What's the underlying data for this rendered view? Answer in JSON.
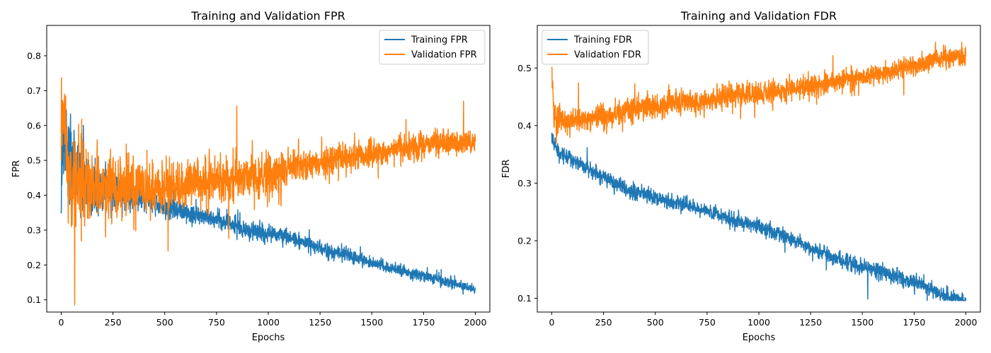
{
  "colors": {
    "training": "#1f77b4",
    "validation": "#ff7f0e"
  },
  "chart_data": [
    {
      "type": "line",
      "title": "Training and Validation FPR",
      "xlabel": "Epochs",
      "ylabel": "FPR",
      "xlim": [
        -70,
        2070
      ],
      "ylim": [
        0.065,
        0.887
      ],
      "xticks": [
        0,
        250,
        500,
        750,
        1000,
        1250,
        1500,
        1750,
        2000
      ],
      "yticks": [
        0.1,
        0.2,
        0.3,
        0.4,
        0.5,
        0.6,
        0.7,
        0.8
      ],
      "legend_position": "top-right",
      "grid": false,
      "series": [
        {
          "name": "Training FPR",
          "color": "#1f77b4",
          "x": [
            0,
            10,
            25,
            50,
            100,
            150,
            200,
            250,
            300,
            400,
            500,
            600,
            700,
            800,
            900,
            1000,
            1100,
            1200,
            1300,
            1400,
            1500,
            1600,
            1700,
            1800,
            1900,
            2000
          ],
          "values": [
            0.38,
            0.6,
            0.5,
            0.52,
            0.45,
            0.42,
            0.41,
            0.41,
            0.4,
            0.39,
            0.37,
            0.35,
            0.34,
            0.32,
            0.3,
            0.29,
            0.28,
            0.26,
            0.24,
            0.225,
            0.205,
            0.19,
            0.175,
            0.16,
            0.145,
            0.13
          ],
          "noise": [
            0.1,
            0.1,
            0.1,
            0.1,
            0.08,
            0.07,
            0.06,
            0.05,
            0.04,
            0.03,
            0.03,
            0.03,
            0.025,
            0.025,
            0.025,
            0.025,
            0.02,
            0.02,
            0.02,
            0.02,
            0.015,
            0.015,
            0.015,
            0.015,
            0.015,
            0.01
          ]
        },
        {
          "name": "Validation FPR",
          "color": "#ff7f0e",
          "x": [
            0,
            10,
            25,
            50,
            100,
            150,
            200,
            250,
            300,
            400,
            500,
            600,
            700,
            800,
            900,
            1000,
            1100,
            1200,
            1300,
            1400,
            1500,
            1600,
            1700,
            1800,
            1900,
            2000
          ],
          "values": [
            0.6,
            0.65,
            0.5,
            0.45,
            0.44,
            0.43,
            0.42,
            0.42,
            0.42,
            0.42,
            0.42,
            0.43,
            0.44,
            0.45,
            0.45,
            0.46,
            0.48,
            0.49,
            0.5,
            0.51,
            0.52,
            0.53,
            0.54,
            0.55,
            0.55,
            0.55
          ],
          "noise": [
            0.15,
            0.15,
            0.15,
            0.12,
            0.12,
            0.1,
            0.09,
            0.08,
            0.08,
            0.07,
            0.07,
            0.065,
            0.06,
            0.06,
            0.06,
            0.06,
            0.045,
            0.04,
            0.04,
            0.035,
            0.035,
            0.035,
            0.035,
            0.035,
            0.035,
            0.03
          ]
        }
      ]
    },
    {
      "type": "line",
      "title": "Training and Validation FDR",
      "xlabel": "Epochs",
      "ylabel": "FDR",
      "xlim": [
        -70,
        2070
      ],
      "ylim": [
        0.076,
        0.574
      ],
      "xticks": [
        0,
        250,
        500,
        750,
        1000,
        1250,
        1500,
        1750,
        2000
      ],
      "yticks": [
        0.1,
        0.2,
        0.3,
        0.4,
        0.5
      ],
      "legend_position": "top-left",
      "grid": false,
      "series": [
        {
          "name": "Training FDR",
          "color": "#1f77b4",
          "x": [
            0,
            10,
            25,
            50,
            100,
            150,
            200,
            250,
            300,
            400,
            500,
            600,
            700,
            800,
            900,
            1000,
            1100,
            1200,
            1300,
            1400,
            1500,
            1600,
            1700,
            1800,
            1900,
            2000
          ],
          "values": [
            0.385,
            0.37,
            0.355,
            0.35,
            0.34,
            0.33,
            0.32,
            0.31,
            0.3,
            0.285,
            0.275,
            0.265,
            0.255,
            0.245,
            0.235,
            0.225,
            0.21,
            0.195,
            0.18,
            0.165,
            0.155,
            0.145,
            0.135,
            0.12,
            0.105,
            0.095
          ],
          "noise": [
            0.012,
            0.012,
            0.012,
            0.012,
            0.012,
            0.012,
            0.012,
            0.012,
            0.012,
            0.012,
            0.012,
            0.012,
            0.012,
            0.012,
            0.012,
            0.012,
            0.012,
            0.012,
            0.012,
            0.012,
            0.012,
            0.012,
            0.012,
            0.012,
            0.012,
            0.012
          ]
        },
        {
          "name": "Validation FDR",
          "color": "#ff7f0e",
          "x": [
            0,
            10,
            25,
            50,
            100,
            150,
            200,
            250,
            300,
            400,
            500,
            600,
            700,
            800,
            900,
            1000,
            1100,
            1200,
            1300,
            1400,
            1500,
            1600,
            1700,
            1800,
            1900,
            2000
          ],
          "values": [
            0.49,
            0.43,
            0.41,
            0.41,
            0.41,
            0.41,
            0.41,
            0.415,
            0.42,
            0.43,
            0.435,
            0.44,
            0.44,
            0.445,
            0.455,
            0.455,
            0.46,
            0.465,
            0.47,
            0.48,
            0.485,
            0.49,
            0.5,
            0.51,
            0.52,
            0.52
          ],
          "noise": [
            0.025,
            0.025,
            0.025,
            0.02,
            0.02,
            0.02,
            0.02,
            0.02,
            0.02,
            0.02,
            0.018,
            0.018,
            0.018,
            0.018,
            0.018,
            0.018,
            0.018,
            0.018,
            0.018,
            0.016,
            0.016,
            0.016,
            0.016,
            0.016,
            0.016,
            0.016
          ]
        }
      ]
    }
  ]
}
